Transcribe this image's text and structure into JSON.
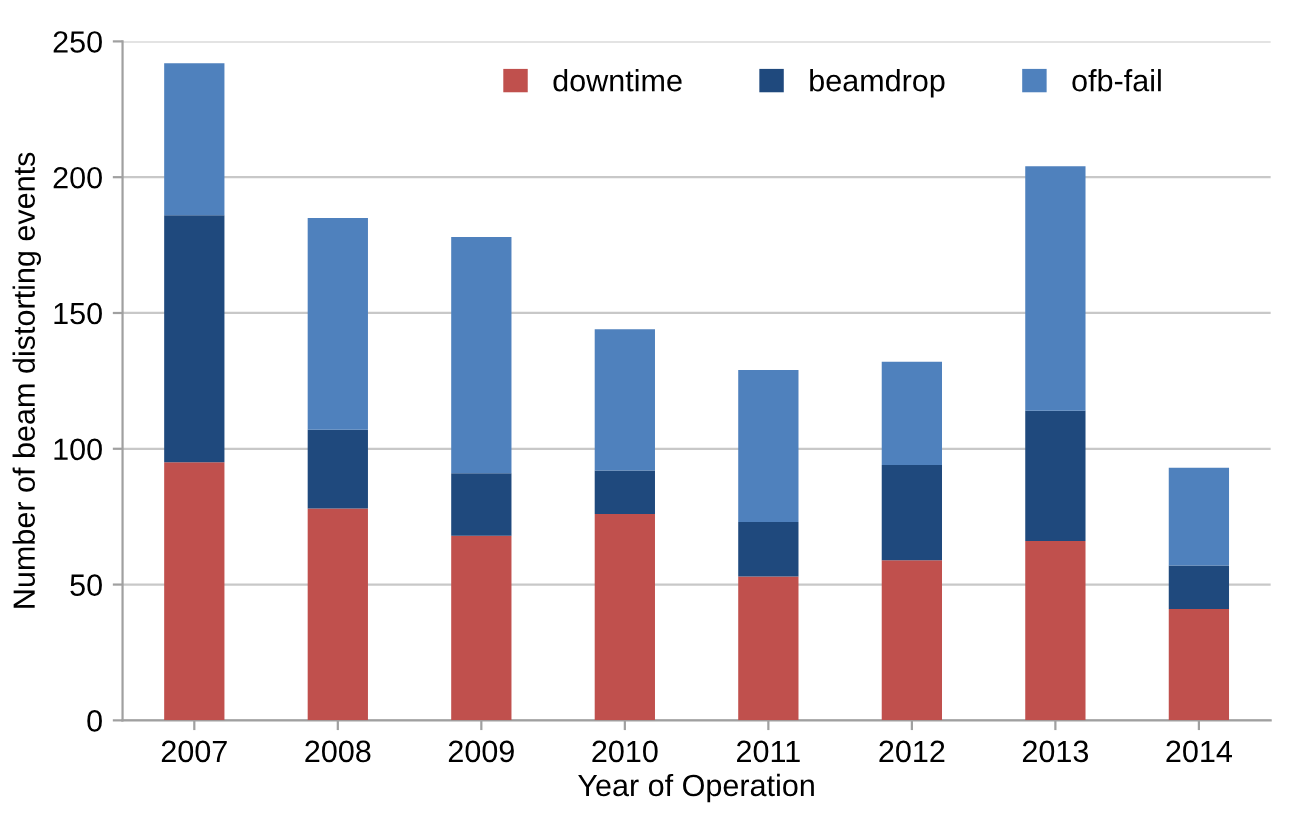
{
  "chart_data": {
    "type": "bar",
    "stacked": true,
    "xlabel": "Year of Operation",
    "ylabel": "Number of beam distorting events",
    "categories": [
      "2007",
      "2008",
      "2009",
      "2010",
      "2011",
      "2012",
      "2013",
      "2014"
    ],
    "series": [
      {
        "name": "downtime",
        "color": "#c0504d",
        "values": [
          95,
          78,
          68,
          76,
          53,
          59,
          66,
          41
        ]
      },
      {
        "name": "beamdrop",
        "color": "#1f497d",
        "values": [
          91,
          29,
          23,
          16,
          20,
          35,
          48,
          16
        ]
      },
      {
        "name": "ofb-fail",
        "color": "#4f81bd",
        "values": [
          56,
          78,
          87,
          52,
          56,
          38,
          90,
          36
        ]
      }
    ],
    "ylim": [
      0,
      250
    ],
    "yticks": [
      0,
      50,
      100,
      150,
      200,
      250
    ],
    "grid": "y",
    "legend": "top right"
  }
}
